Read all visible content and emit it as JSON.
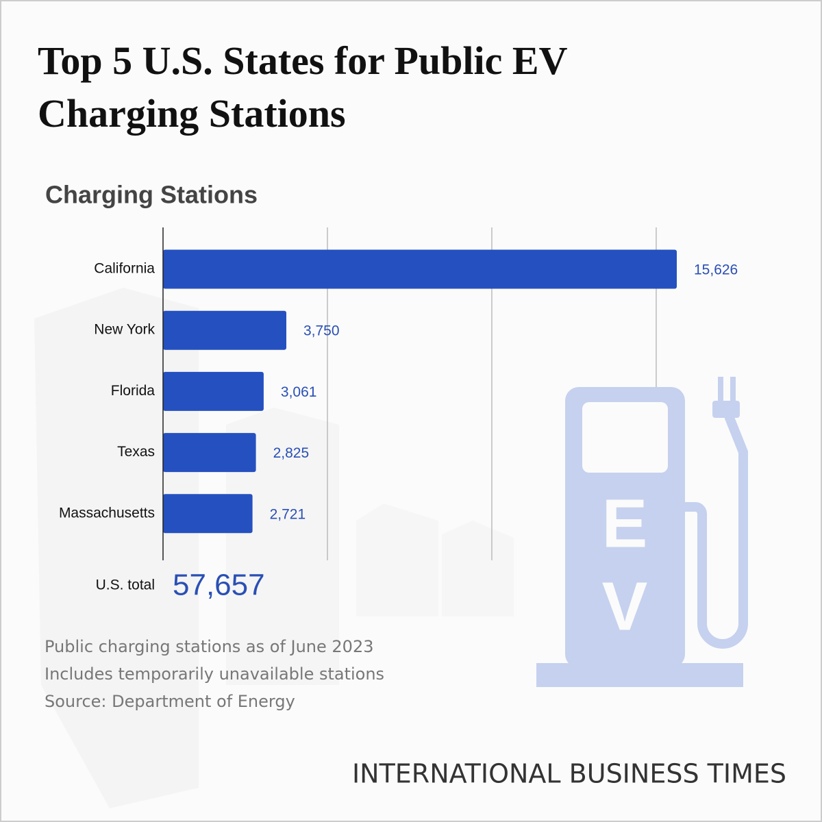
{
  "chart_data": {
    "type": "bar",
    "orientation": "horizontal",
    "title": "Top 5 U.S. States for Public EV Charging Stations",
    "subtitle": "Charging Stations",
    "categories": [
      "California",
      "New York",
      "Florida",
      "Texas",
      "Massachusetts"
    ],
    "values": [
      15626,
      3750,
      3061,
      2825,
      2721
    ],
    "value_labels": [
      "15,626",
      "3,750",
      "3,061",
      "2,825",
      "2,721"
    ],
    "color": "#2550c0",
    "xlim": [
      0,
      17500
    ],
    "xticks": [
      0,
      5000,
      10000,
      15000
    ],
    "grid": true
  },
  "total": {
    "label": "U.S. total",
    "value": 57657,
    "value_label": "57,657"
  },
  "notes": [
    "Public charging stations as of June 2023",
    "Includes temporarily unavailable stations",
    "Source: Department of Energy"
  ],
  "icon_letters": [
    "E",
    "V"
  ],
  "brand": "INTERNATIONAL BUSINESS TIMES"
}
